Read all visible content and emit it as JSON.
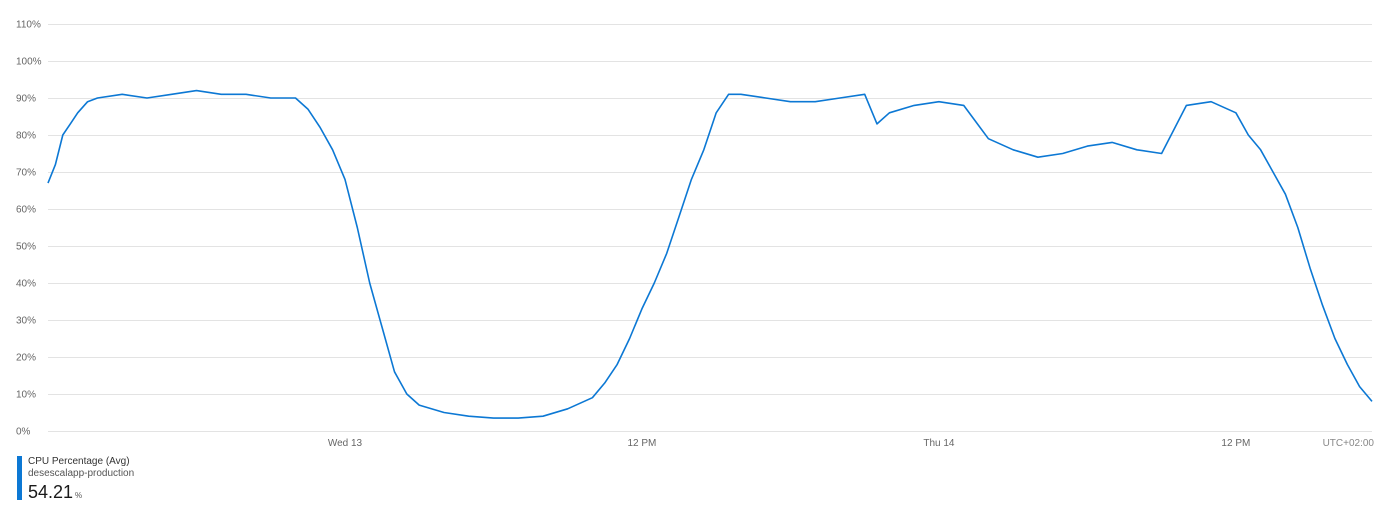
{
  "chart_data": {
    "type": "line",
    "y_ticks": [
      "0%",
      "10%",
      "20%",
      "30%",
      "40%",
      "50%",
      "60%",
      "70%",
      "80%",
      "90%",
      "100%",
      "110%"
    ],
    "ylim": [
      0,
      110
    ],
    "x_tick_labels": [
      "Wed 13",
      "12 PM",
      "Thu 14",
      "12 PM"
    ],
    "x_tick_hours": [
      12,
      24,
      36,
      48
    ],
    "xlim_hours": [
      0,
      53.5
    ],
    "timezone_label": "UTC+02:00",
    "grid": true,
    "series": [
      {
        "metric": "CPU Percentage (Avg)",
        "resource": "desescalapp-production",
        "current_value": "54.21",
        "unit": "%",
        "color": "#0c78d4",
        "points": [
          [
            0.0,
            67
          ],
          [
            0.3,
            72
          ],
          [
            0.6,
            80
          ],
          [
            0.9,
            83
          ],
          [
            1.2,
            86
          ],
          [
            1.6,
            89
          ],
          [
            2.0,
            90
          ],
          [
            3.0,
            91
          ],
          [
            4.0,
            90
          ],
          [
            5.0,
            91
          ],
          [
            6.0,
            92
          ],
          [
            7.0,
            91
          ],
          [
            8.0,
            91
          ],
          [
            9.0,
            90
          ],
          [
            10.0,
            90
          ],
          [
            10.5,
            87
          ],
          [
            11.0,
            82
          ],
          [
            11.5,
            76
          ],
          [
            12.0,
            68
          ],
          [
            12.5,
            55
          ],
          [
            13.0,
            40
          ],
          [
            13.5,
            28
          ],
          [
            14.0,
            16
          ],
          [
            14.5,
            10
          ],
          [
            15.0,
            7
          ],
          [
            16.0,
            5
          ],
          [
            17.0,
            4
          ],
          [
            18.0,
            3.5
          ],
          [
            19.0,
            3.5
          ],
          [
            20.0,
            4
          ],
          [
            21.0,
            6
          ],
          [
            22.0,
            9
          ],
          [
            22.5,
            13
          ],
          [
            23.0,
            18
          ],
          [
            23.5,
            25
          ],
          [
            24.0,
            33
          ],
          [
            24.5,
            40
          ],
          [
            25.0,
            48
          ],
          [
            25.5,
            58
          ],
          [
            26.0,
            68
          ],
          [
            26.5,
            76
          ],
          [
            27.0,
            86
          ],
          [
            27.5,
            91
          ],
          [
            28.0,
            91
          ],
          [
            29.0,
            90
          ],
          [
            30.0,
            89
          ],
          [
            31.0,
            89
          ],
          [
            32.0,
            90
          ],
          [
            33.0,
            91
          ],
          [
            33.5,
            83
          ],
          [
            34.0,
            86
          ],
          [
            35.0,
            88
          ],
          [
            36.0,
            89
          ],
          [
            37.0,
            88
          ],
          [
            38.0,
            79
          ],
          [
            39.0,
            76
          ],
          [
            40.0,
            74
          ],
          [
            41.0,
            75
          ],
          [
            42.0,
            77
          ],
          [
            43.0,
            78
          ],
          [
            44.0,
            76
          ],
          [
            45.0,
            75
          ],
          [
            46.0,
            88
          ],
          [
            47.0,
            89
          ],
          [
            48.0,
            86
          ],
          [
            48.5,
            80
          ],
          [
            49.0,
            76
          ],
          [
            49.5,
            70
          ],
          [
            50.0,
            64
          ],
          [
            50.5,
            55
          ],
          [
            51.0,
            44
          ],
          [
            51.5,
            34
          ],
          [
            52.0,
            25
          ],
          [
            52.5,
            18
          ],
          [
            53.0,
            12
          ],
          [
            53.5,
            8
          ]
        ]
      }
    ]
  }
}
